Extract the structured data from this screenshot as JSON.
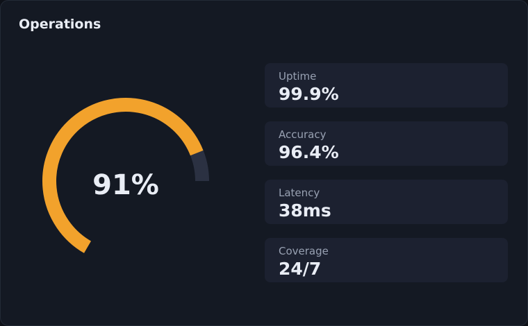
{
  "card": {
    "title": "Operations"
  },
  "gauge": {
    "value_label": "91%",
    "fraction": 0.91,
    "colors": {
      "fill": "#f2a22c",
      "track": "#2b3142"
    }
  },
  "stats": [
    {
      "label": "Uptime",
      "value": "99.9%"
    },
    {
      "label": "Accuracy",
      "value": "96.4%"
    },
    {
      "label": "Latency",
      "value": "38ms"
    },
    {
      "label": "Coverage",
      "value": "24/7"
    }
  ]
}
